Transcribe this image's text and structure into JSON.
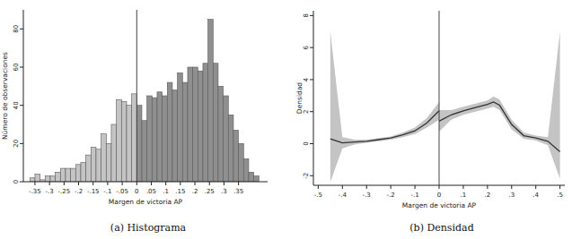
{
  "chart_data": [
    {
      "type": "histogram",
      "caption": "(a) Histograma",
      "x_label": "Margen de victoria AP",
      "y_label": "Número de observaciones",
      "bins": [
        -0.3675,
        -0.35,
        -0.3325,
        -0.315,
        -0.2975,
        -0.28,
        -0.2625,
        -0.245,
        -0.2275,
        -0.21,
        -0.1925,
        -0.175,
        -0.1575,
        -0.14,
        -0.1225,
        -0.105,
        -0.0875,
        -0.07,
        -0.0525,
        -0.035,
        -0.0175,
        0,
        0.0175,
        0.035,
        0.0525,
        0.07,
        0.0875,
        0.105,
        0.1225,
        0.14,
        0.1575,
        0.175,
        0.1925,
        0.21,
        0.2275,
        0.245,
        0.2625,
        0.28,
        0.2975,
        0.315,
        0.3325,
        0.35,
        0.3675,
        0.385,
        0.4025,
        0.42
      ],
      "values": [
        2,
        4,
        1,
        3,
        3,
        5,
        7,
        7,
        7,
        9,
        10,
        14,
        18,
        17,
        25,
        20,
        30,
        43,
        42,
        40,
        46,
        40,
        32,
        45,
        44,
        47,
        45,
        52,
        48,
        57,
        52,
        60,
        60,
        58,
        62,
        85,
        62,
        50,
        45,
        35,
        27,
        20,
        12,
        5,
        3
      ],
      "colors": [
        "#c4c4c4",
        "#c4c4c4",
        "#c4c4c4",
        "#c4c4c4",
        "#c4c4c4",
        "#c4c4c4",
        "#c4c4c4",
        "#c4c4c4",
        "#c4c4c4",
        "#c4c4c4",
        "#c4c4c4",
        "#c4c4c4",
        "#c4c4c4",
        "#c4c4c4",
        "#c4c4c4",
        "#c4c4c4",
        "#c4c4c4",
        "#c4c4c4",
        "#c4c4c4",
        "#c4c4c4",
        "#c4c4c4",
        "#8f8f8f",
        "#8f8f8f",
        "#8f8f8f",
        "#8f8f8f",
        "#8f8f8f",
        "#8f8f8f",
        "#8f8f8f",
        "#8f8f8f",
        "#8f8f8f",
        "#8f8f8f",
        "#8f8f8f",
        "#8f8f8f",
        "#8f8f8f",
        "#8f8f8f",
        "#8f8f8f",
        "#8f8f8f",
        "#8f8f8f",
        "#8f8f8f",
        "#8f8f8f",
        "#8f8f8f",
        "#8f8f8f",
        "#8f8f8f",
        "#8f8f8f",
        "#8f8f8f"
      ],
      "vline": 0,
      "xlim": [
        -0.39,
        0.45
      ],
      "ylim": [
        0,
        90
      ],
      "xticks": [
        {
          "value": -0.35,
          "label": "-.35"
        },
        {
          "value": -0.3,
          "label": "-.3"
        },
        {
          "value": -0.25,
          "label": "-.25"
        },
        {
          "value": -0.2,
          "label": "-.2"
        },
        {
          "value": -0.15,
          "label": "-.15"
        },
        {
          "value": -0.1,
          "label": "-.1"
        },
        {
          "value": -0.05,
          "label": "-.05"
        },
        0,
        {
          "value": 0.05,
          "label": ".05"
        },
        {
          "value": 0.1,
          "label": ".1"
        },
        {
          "value": 0.15,
          "label": ".15"
        },
        {
          "value": 0.2,
          "label": ".2"
        },
        {
          "value": 0.25,
          "label": ".25"
        },
        {
          "value": 0.3,
          "label": ".3"
        },
        {
          "value": 0.35,
          "label": ".35"
        }
      ],
      "yticks": [
        0,
        20,
        40,
        60,
        80
      ],
      "grid": false
    },
    {
      "type": "line",
      "caption": "(b) Densidad",
      "x_label": "Margen de victoria AP",
      "y_label": "Densidad",
      "series": [
        {
          "color": "#333333",
          "x": [
            -0.45,
            -0.4,
            -0.35,
            -0.3,
            -0.25,
            -0.2,
            -0.15,
            -0.1,
            -0.05,
            0
          ],
          "values": [
            0.3,
            0.05,
            0.1,
            0.15,
            0.25,
            0.35,
            0.55,
            0.8,
            1.3,
            2.05
          ],
          "lower": [
            -2.4,
            -0.3,
            -0.05,
            0.05,
            0.15,
            0.25,
            0.4,
            0.6,
            1.0,
            1.5
          ],
          "upper": [
            7.0,
            0.4,
            0.25,
            0.25,
            0.35,
            0.45,
            0.7,
            1.0,
            1.6,
            2.6
          ]
        },
        {
          "color": "#333333",
          "x": [
            0,
            0.05,
            0.1,
            0.15,
            0.2,
            0.225,
            0.25,
            0.3,
            0.35,
            0.4,
            0.45,
            0.5
          ],
          "values": [
            1.4,
            1.8,
            2.05,
            2.25,
            2.45,
            2.6,
            2.4,
            1.2,
            0.5,
            0.35,
            0.15,
            -0.5
          ],
          "lower": [
            0.75,
            1.5,
            1.8,
            2.0,
            2.2,
            2.3,
            2.1,
            0.9,
            0.3,
            0.2,
            -0.1,
            -2.2
          ],
          "upper": [
            2.1,
            2.1,
            2.3,
            2.5,
            2.7,
            2.95,
            2.75,
            1.5,
            0.7,
            0.5,
            0.4,
            7.0
          ]
        }
      ],
      "vline": 0,
      "xlim": [
        -0.52,
        0.52
      ],
      "ylim": [
        -2.6,
        8.3
      ],
      "xticks": [
        {
          "value": -0.5,
          "label": "-.5"
        },
        {
          "value": -0.4,
          "label": "-.4"
        },
        {
          "value": -0.3,
          "label": "-.3"
        },
        {
          "value": -0.2,
          "label": "-.2"
        },
        {
          "value": -0.1,
          "label": "-.1"
        },
        0,
        {
          "value": 0.1,
          "label": ".1"
        },
        {
          "value": 0.2,
          "label": ".2"
        },
        {
          "value": 0.3,
          "label": ".3"
        },
        {
          "value": 0.4,
          "label": ".4"
        },
        {
          "value": 0.5,
          "label": ".5"
        }
      ],
      "yticks": [
        -2,
        0,
        2,
        4,
        6,
        8
      ],
      "grid": false
    }
  ]
}
